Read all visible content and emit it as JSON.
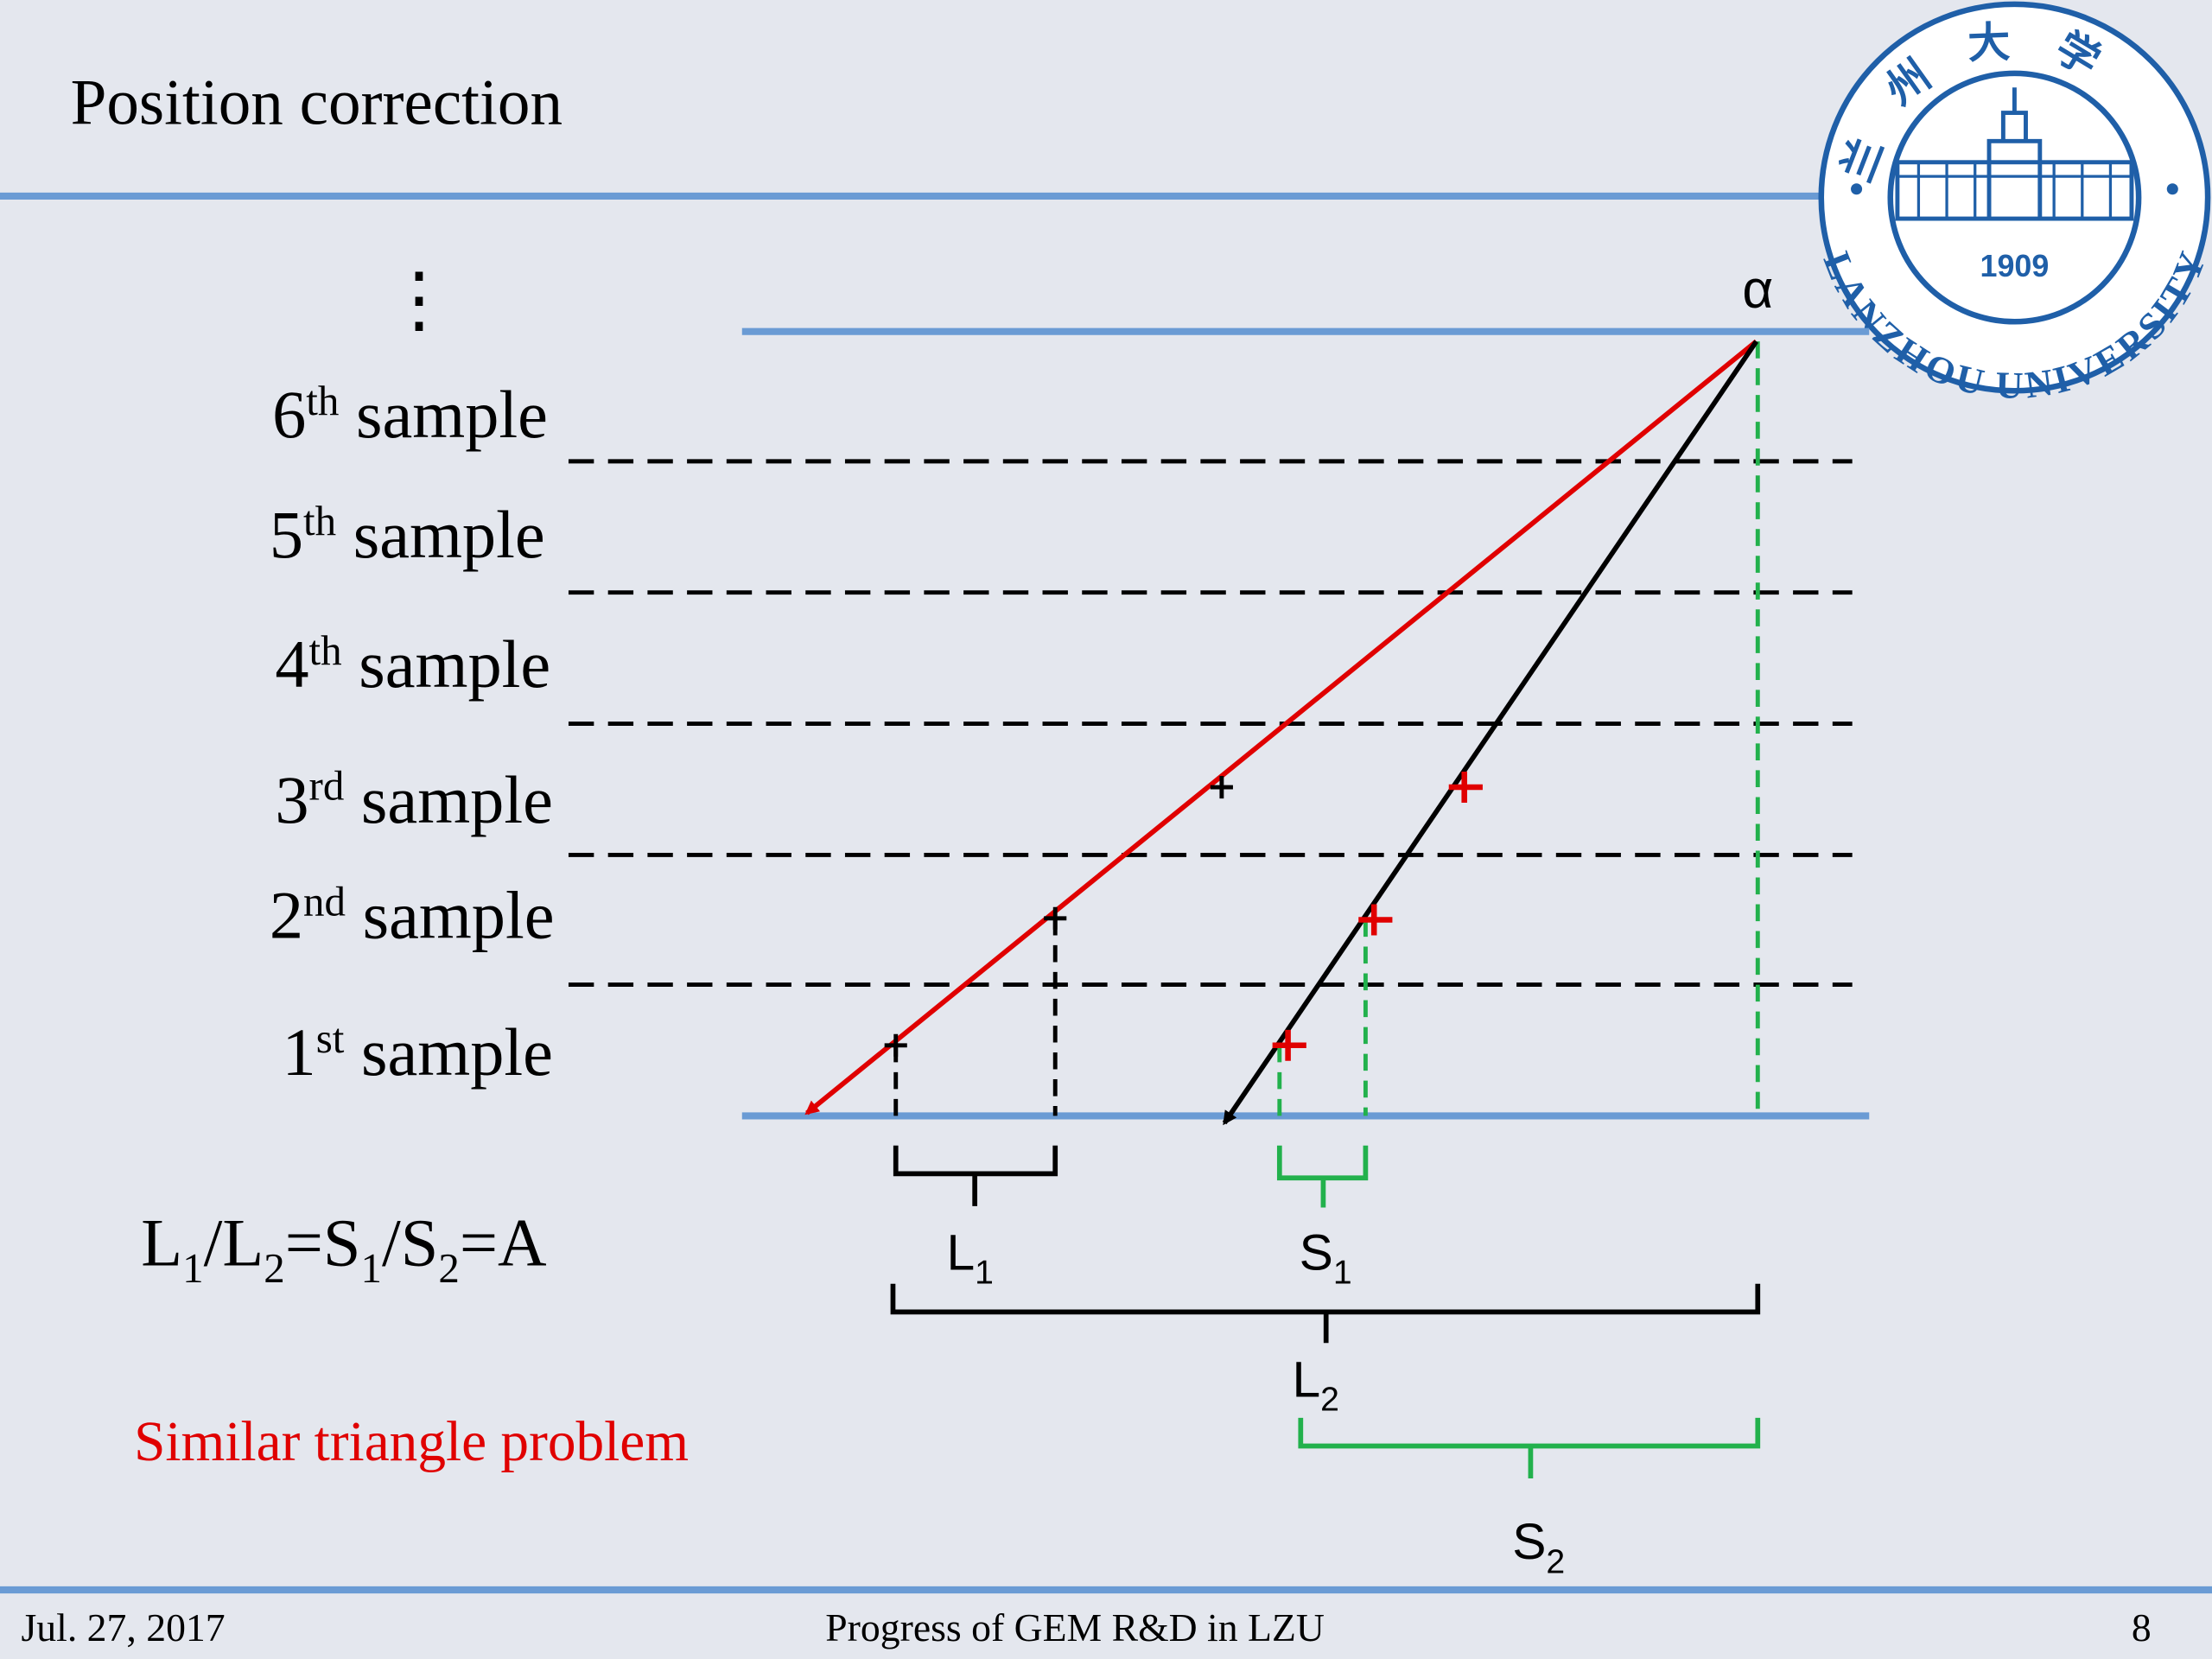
{
  "header": {
    "title": "Position correction"
  },
  "diagram": {
    "source": "α",
    "ellipsis": "⋮",
    "samples": [
      {
        "number": "6",
        "suffix": "th",
        "text": " sample"
      },
      {
        "number": "5",
        "suffix": "th",
        "text": " sample"
      },
      {
        "number": "4",
        "suffix": "th",
        "text": " sample"
      },
      {
        "number": "3",
        "suffix": "rd",
        "text": " sample"
      },
      {
        "number": "2",
        "suffix": "nd",
        "text": " sample"
      },
      {
        "number": "1",
        "suffix": "st",
        "text": " sample"
      }
    ],
    "braces": [
      {
        "letter": "L",
        "sub": "1"
      },
      {
        "letter": "S",
        "sub": "1"
      },
      {
        "letter": "L",
        "sub": "2"
      },
      {
        "letter": "S",
        "sub": "2"
      }
    ],
    "equation": [
      "L",
      "1",
      "/L",
      "2",
      "=S",
      "1",
      "/S",
      "2",
      "=A"
    ],
    "note": "Similar triangle problem"
  },
  "logo": {
    "chinese": "兰州大学",
    "year": "1909",
    "name": "LANZHOU UNIVERSITY"
  },
  "footer": {
    "date": "Jul. 27, 2017",
    "center": "Progress of GEM R&D in LZU",
    "page": "8"
  }
}
